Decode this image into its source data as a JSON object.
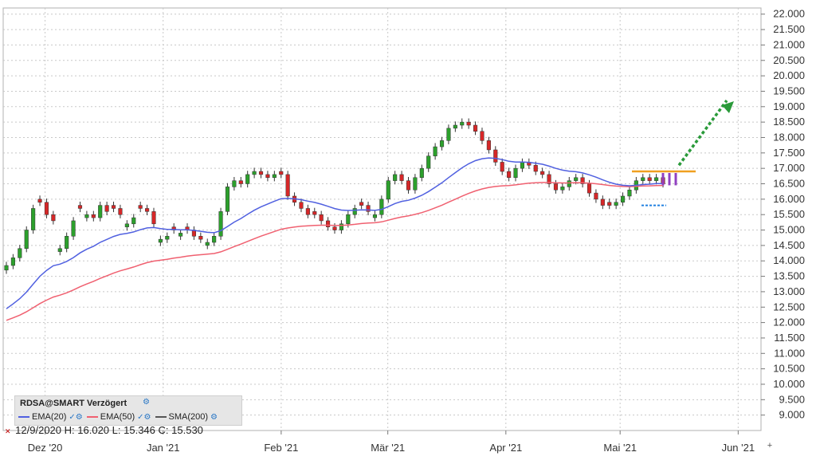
{
  "chart_data": {
    "type": "candlestick",
    "y_ticks": [
      "22.000",
      "21.500",
      "21.000",
      "20.500",
      "20.000",
      "19.500",
      "19.000",
      "18.500",
      "18.000",
      "17.500",
      "17.000",
      "16.500",
      "16.000",
      "15.500",
      "15.000",
      "14.500",
      "14.000",
      "13.500",
      "13.000",
      "12.500",
      "12.000",
      "11.500",
      "11.000",
      "10.500",
      "10.000",
      "9.500",
      "9.000"
    ],
    "ylim": [
      8.5,
      22.2
    ],
    "x_tick_labels": [
      "Dez '20",
      "Jan '21",
      "Feb '21",
      "Mär '21",
      "Apr '21",
      "Mai '21",
      "Jun '21"
    ],
    "x_tick_dates": [
      "2020-12-01",
      "2021-01-01",
      "2021-02-01",
      "2021-03-01",
      "2021-04-01",
      "2021-05-01",
      "2021-06-01"
    ],
    "candles_close": [
      13.85,
      14.1,
      14.4,
      15.0,
      15.7,
      15.9,
      15.5,
      15.3,
      14.4,
      14.8,
      15.3,
      15.7,
      15.5,
      15.4,
      15.8,
      15.6,
      15.7,
      15.5,
      15.2,
      15.4,
      15.7,
      15.6,
      15.2,
      14.7,
      14.8,
      15.0,
      14.9,
      15.0,
      14.8,
      14.7,
      14.6,
      14.8,
      15.6,
      16.4,
      16.6,
      16.5,
      16.8,
      16.9,
      16.8,
      16.7,
      16.8,
      16.8,
      16.1,
      15.9,
      15.7,
      15.5,
      15.5,
      15.3,
      15.1,
      15.0,
      15.2,
      15.5,
      15.7,
      15.8,
      15.6,
      15.5,
      16.0,
      16.6,
      16.8,
      16.6,
      16.3,
      16.7,
      17.0,
      17.4,
      17.7,
      17.9,
      18.3,
      18.4,
      18.5,
      18.4,
      18.2,
      17.9,
      17.6,
      17.2,
      16.9,
      16.7,
      17.0,
      17.2,
      17.1,
      16.9,
      16.8,
      16.5,
      16.3,
      16.4,
      16.6,
      16.7,
      16.5,
      16.2,
      16.0,
      15.8,
      15.8,
      15.9,
      16.1,
      16.3,
      16.6,
      16.7,
      16.6,
      16.7,
      16.5
    ],
    "candles_up": [
      true,
      true,
      true,
      true,
      true,
      false,
      false,
      false,
      true,
      true,
      true,
      false,
      true,
      false,
      true,
      false,
      false,
      false,
      true,
      true,
      false,
      false,
      false,
      true,
      true,
      false,
      true,
      false,
      false,
      false,
      true,
      true,
      true,
      true,
      true,
      false,
      true,
      true,
      false,
      false,
      true,
      false,
      false,
      false,
      false,
      false,
      false,
      false,
      false,
      false,
      true,
      true,
      true,
      false,
      false,
      true,
      true,
      true,
      true,
      false,
      false,
      true,
      true,
      true,
      true,
      true,
      true,
      true,
      true,
      false,
      false,
      false,
      false,
      false,
      false,
      false,
      true,
      true,
      false,
      false,
      false,
      false,
      false,
      true,
      true,
      true,
      false,
      false,
      false,
      false,
      false,
      true,
      true,
      true,
      true,
      true,
      false,
      true,
      false
    ],
    "indicators": {
      "ema20_color": "#5060e0",
      "ema50_color": "#f06070",
      "sma200_color": "#555555",
      "up_color": "#2ca02c",
      "down_color": "#d62728",
      "forecast_bars_color": "#9040c0",
      "resistance_color": "#f0a020",
      "support_color": "#2080e0",
      "arrow_color": "#2a9a3a"
    }
  },
  "legend": {
    "title": "RDSA@SMART Verzögert",
    "items": [
      {
        "label": "EMA(20)",
        "color": "#5060e0"
      },
      {
        "label": "EMA(50)",
        "color": "#f06070"
      },
      {
        "label": "SMA(200)",
        "color": "#555555"
      }
    ]
  },
  "ohlc": {
    "date": "12/9/2020",
    "h_label": "H:",
    "h_value": "16.020",
    "l_label": "L:",
    "l_value": "15.346",
    "c_label": "C:",
    "c_value": "15.530"
  },
  "crosshair_date": "12/9/2020",
  "axis_extra_label": "Dez"
}
